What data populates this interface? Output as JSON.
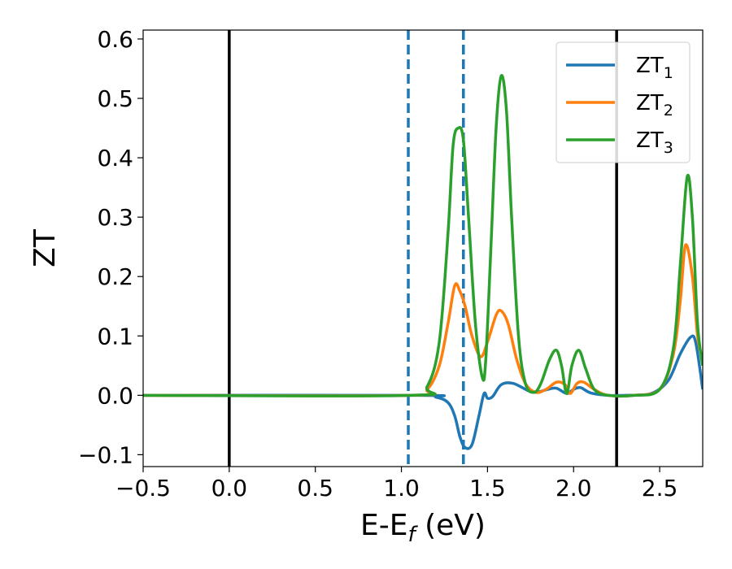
{
  "chart_data": {
    "type": "line",
    "xlabel": "E-E",
    "xlabel_sub": "f",
    "xlabel_unit": " (eV)",
    "ylabel": "ZT",
    "xlim": [
      -0.5,
      2.75
    ],
    "ylim": [
      -0.12,
      0.615
    ],
    "xticks": [
      -0.5,
      0.0,
      0.5,
      1.0,
      1.5,
      2.0,
      2.5
    ],
    "xtick_labels": [
      "−0.5",
      "0.0",
      "0.5",
      "1.0",
      "1.5",
      "2.0",
      "2.5"
    ],
    "yticks": [
      -0.1,
      0.0,
      0.1,
      0.2,
      0.3,
      0.4,
      0.5,
      0.6
    ],
    "ytick_labels": [
      "−0.1",
      "0.0",
      "0.1",
      "0.2",
      "0.3",
      "0.4",
      "0.5",
      "0.6"
    ],
    "grid": false,
    "legend_position": "top-right",
    "vertical_lines": [
      {
        "x": 0.0,
        "style": "solid",
        "color": "#000000"
      },
      {
        "x": 2.25,
        "style": "solid",
        "color": "#000000"
      },
      {
        "x": 1.04,
        "style": "dashed",
        "color": "#1f77b4"
      },
      {
        "x": 1.36,
        "style": "dashed",
        "color": "#1f77b4"
      }
    ],
    "series": [
      {
        "name": "ZT",
        "sub": "1",
        "color": "#1f77b4",
        "x": [
          -0.5,
          1.1,
          1.2,
          1.27,
          1.31,
          1.34,
          1.37,
          1.41,
          1.45,
          1.48,
          1.5,
          1.53,
          1.58,
          1.65,
          1.75,
          1.8,
          1.85,
          1.9,
          1.96,
          2.0,
          2.04,
          2.1,
          2.2,
          2.3,
          2.45,
          2.55,
          2.62,
          2.68,
          2.71,
          2.75
        ],
        "y": [
          0.0,
          0.0,
          -0.003,
          -0.012,
          -0.035,
          -0.07,
          -0.088,
          -0.083,
          -0.035,
          0.003,
          -0.005,
          -0.002,
          0.018,
          0.02,
          0.006,
          0.006,
          0.01,
          0.012,
          0.003,
          0.01,
          0.013,
          0.004,
          0.0,
          0.0,
          0.003,
          0.025,
          0.07,
          0.098,
          0.088,
          0.01
        ]
      },
      {
        "name": "ZT",
        "sub": "2",
        "color": "#ff7f0e",
        "x": [
          -0.5,
          1.05,
          1.15,
          1.22,
          1.27,
          1.31,
          1.34,
          1.37,
          1.41,
          1.46,
          1.5,
          1.55,
          1.58,
          1.62,
          1.67,
          1.72,
          1.78,
          1.84,
          1.9,
          1.95,
          1.98,
          2.02,
          2.06,
          2.12,
          2.2,
          2.35,
          2.5,
          2.58,
          2.62,
          2.65,
          2.69,
          2.72,
          2.75
        ],
        "y": [
          0.0,
          0.0,
          0.01,
          0.05,
          0.12,
          0.185,
          0.175,
          0.15,
          0.1,
          0.065,
          0.09,
          0.135,
          0.142,
          0.12,
          0.06,
          0.02,
          0.005,
          0.01,
          0.022,
          0.018,
          0.003,
          0.02,
          0.022,
          0.01,
          0.0,
          0.0,
          0.01,
          0.07,
          0.16,
          0.253,
          0.2,
          0.1,
          0.06
        ]
      },
      {
        "name": "ZT",
        "sub": "3",
        "color": "#2ca02c",
        "x": [
          -0.5,
          1.05,
          1.15,
          1.22,
          1.27,
          1.3,
          1.33,
          1.36,
          1.39,
          1.43,
          1.47,
          1.49,
          1.52,
          1.55,
          1.58,
          1.61,
          1.64,
          1.68,
          1.72,
          1.77,
          1.81,
          1.86,
          1.9,
          1.93,
          1.96,
          1.99,
          2.03,
          2.07,
          2.12,
          2.2,
          2.35,
          2.5,
          2.58,
          2.62,
          2.66,
          2.69,
          2.72,
          2.75
        ],
        "y": [
          0.0,
          0.0,
          0.015,
          0.09,
          0.27,
          0.42,
          0.45,
          0.43,
          0.3,
          0.12,
          0.03,
          0.06,
          0.25,
          0.45,
          0.538,
          0.48,
          0.3,
          0.1,
          0.02,
          0.005,
          0.02,
          0.06,
          0.076,
          0.05,
          0.003,
          0.05,
          0.076,
          0.045,
          0.01,
          0.0,
          0.0,
          0.01,
          0.08,
          0.22,
          0.368,
          0.3,
          0.12,
          0.05
        ]
      }
    ]
  }
}
